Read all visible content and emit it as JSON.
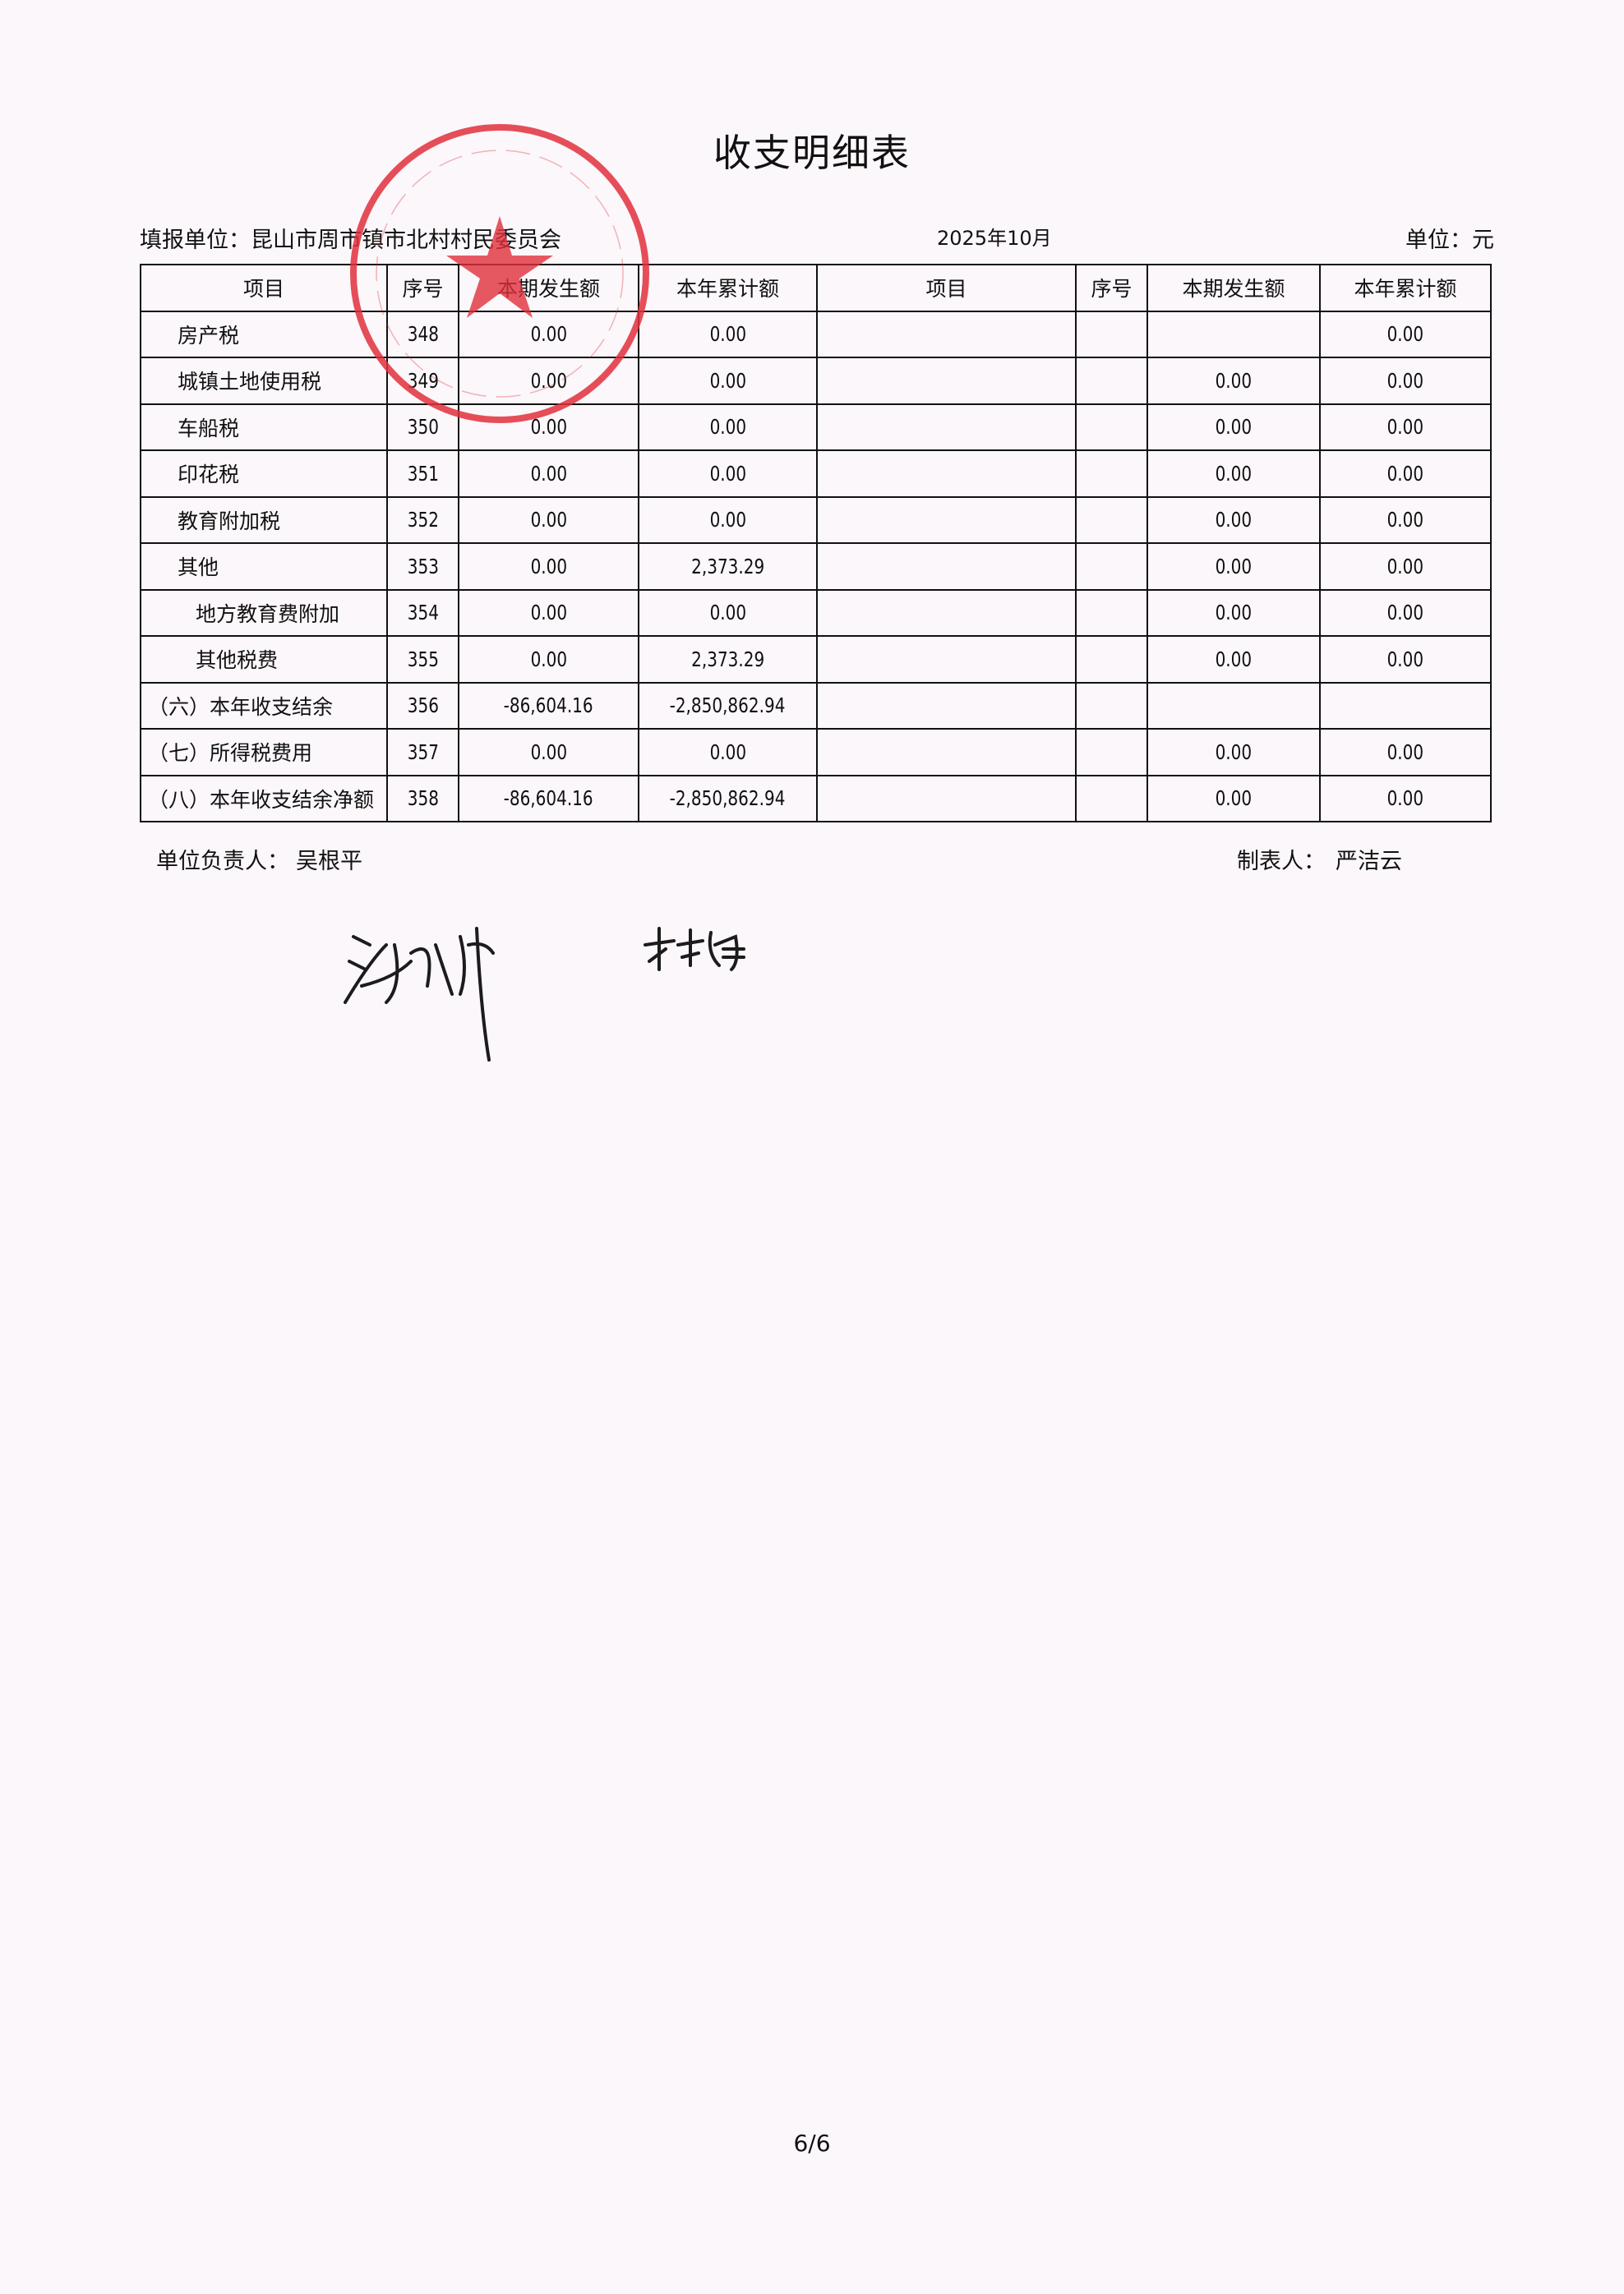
{
  "title": "收支明细表",
  "header": {
    "unit_label": "填报单位：昆山市周市镇市北村村民委员会",
    "period": "2025年10月",
    "currency_label": "单位：元"
  },
  "table": {
    "columns": [
      "项目",
      "序号",
      "本期发生额",
      "本年累计额",
      "项目",
      "序号",
      "本期发生额",
      "本年累计额"
    ],
    "rows": [
      {
        "item": "房产税",
        "no": "348",
        "current": "0.00",
        "ytd": "0.00",
        "r_item": "",
        "r_no": "",
        "r_current": "",
        "r_ytd": "0.00",
        "indent": 1
      },
      {
        "item": "城镇土地使用税",
        "no": "349",
        "current": "0.00",
        "ytd": "0.00",
        "r_item": "",
        "r_no": "",
        "r_current": "0.00",
        "r_ytd": "0.00",
        "indent": 1
      },
      {
        "item": "车船税",
        "no": "350",
        "current": "0.00",
        "ytd": "0.00",
        "r_item": "",
        "r_no": "",
        "r_current": "0.00",
        "r_ytd": "0.00",
        "indent": 1
      },
      {
        "item": "印花税",
        "no": "351",
        "current": "0.00",
        "ytd": "0.00",
        "r_item": "",
        "r_no": "",
        "r_current": "0.00",
        "r_ytd": "0.00",
        "indent": 1
      },
      {
        "item": "教育附加税",
        "no": "352",
        "current": "0.00",
        "ytd": "0.00",
        "r_item": "",
        "r_no": "",
        "r_current": "0.00",
        "r_ytd": "0.00",
        "indent": 1
      },
      {
        "item": "其他",
        "no": "353",
        "current": "0.00",
        "ytd": "2,373.29",
        "r_item": "",
        "r_no": "",
        "r_current": "0.00",
        "r_ytd": "0.00",
        "indent": 1
      },
      {
        "item": "地方教育费附加",
        "no": "354",
        "current": "0.00",
        "ytd": "0.00",
        "r_item": "",
        "r_no": "",
        "r_current": "0.00",
        "r_ytd": "0.00",
        "indent": 2
      },
      {
        "item": "其他税费",
        "no": "355",
        "current": "0.00",
        "ytd": "2,373.29",
        "r_item": "",
        "r_no": "",
        "r_current": "0.00",
        "r_ytd": "0.00",
        "indent": 2
      },
      {
        "item": "（六）本年收支结余",
        "no": "356",
        "current": "-86,604.16",
        "ytd": "-2,850,862.94",
        "r_item": "",
        "r_no": "",
        "r_current": "",
        "r_ytd": "",
        "indent": 0
      },
      {
        "item": "（七）所得税费用",
        "no": "357",
        "current": "0.00",
        "ytd": "0.00",
        "r_item": "",
        "r_no": "",
        "r_current": "0.00",
        "r_ytd": "0.00",
        "indent": 0
      },
      {
        "item": "（八）本年收支结余净额",
        "no": "358",
        "current": "-86,604.16",
        "ytd": "-2,850,862.94",
        "r_item": "",
        "r_no": "",
        "r_current": "0.00",
        "r_ytd": "0.00",
        "indent": 0
      }
    ]
  },
  "footer": {
    "leader_label": "单位负责人：",
    "leader_name": "吴根平",
    "preparer_label": "制表人：",
    "preparer_name": "严洁云"
  },
  "stamp_text": "昆山市周市镇市北村村民委员会",
  "signatures": [
    "吴根平",
    "林娟"
  ],
  "page_number": "6/6",
  "colors": {
    "stamp": "#e0303c",
    "ink": "#111111",
    "paper": "#fbf7fa"
  }
}
